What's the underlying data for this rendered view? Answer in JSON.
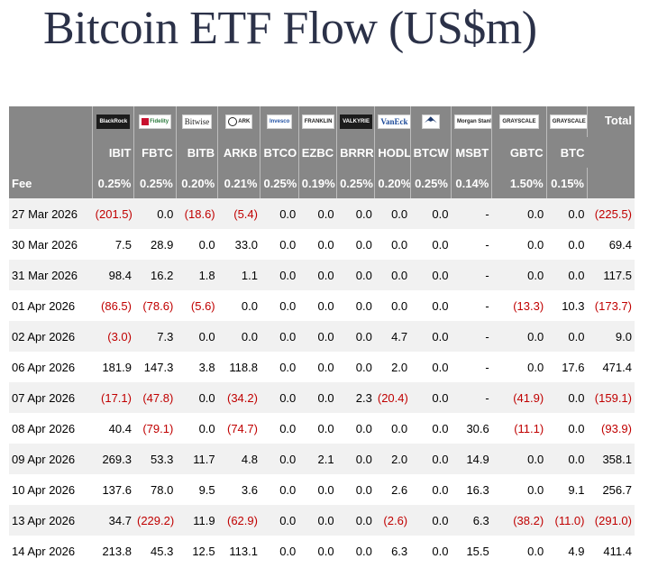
{
  "title": "Bitcoin ETF Flow (US$m)",
  "colors": {
    "header_bg": "#878787",
    "negative": "#c00000",
    "title": "#2b3148",
    "alt_row": "#f1f1f1"
  },
  "issuers": [
    {
      "text": "BlackRock",
      "icon": "blackrock-logo"
    },
    {
      "text": "Fidelity",
      "icon": "fidelity-logo"
    },
    {
      "text": "Bitwise",
      "icon": "bitwise-logo"
    },
    {
      "text": "ARK",
      "icon": "ark-invest-logo"
    },
    {
      "text": "Invesco",
      "icon": "invesco-logo"
    },
    {
      "text": "FRANKLIN",
      "icon": "franklin-templeton-logo"
    },
    {
      "text": "VALKYRIE",
      "icon": "valkyrie-logo"
    },
    {
      "text": "VanEck",
      "icon": "vaneck-logo"
    },
    {
      "text": "WisdomTree",
      "icon": "wisdomtree-logo"
    },
    {
      "text": "Morgan Stanley",
      "icon": "morgan-stanley-logo"
    },
    {
      "text": "GRAYSCALE",
      "icon": "grayscale-logo"
    },
    {
      "text": "GRAYSCALE",
      "icon": "grayscale-logo"
    }
  ],
  "total_header": "Total",
  "tickers": [
    "IBIT",
    "FBTC",
    "BITB",
    "ARKB",
    "BTCO",
    "EZBC",
    "BRRR",
    "HODL",
    "BTCW",
    "MSBT",
    "GBTC",
    "BTC"
  ],
  "fee_label": "Fee",
  "fees": [
    "0.25%",
    "0.25%",
    "0.20%",
    "0.21%",
    "0.25%",
    "0.19%",
    "0.25%",
    "0.20%",
    "0.25%",
    "0.14%",
    "1.50%",
    "0.15%"
  ],
  "rows": [
    {
      "date": "27 Mar 2026",
      "values": [
        "(201.5)",
        "0.0",
        "(18.6)",
        "(5.4)",
        "0.0",
        "0.0",
        "0.0",
        "0.0",
        "0.0",
        "-",
        "0.0",
        "0.0",
        "(225.5)"
      ]
    },
    {
      "date": "30 Mar 2026",
      "values": [
        "7.5",
        "28.9",
        "0.0",
        "33.0",
        "0.0",
        "0.0",
        "0.0",
        "0.0",
        "0.0",
        "-",
        "0.0",
        "0.0",
        "69.4"
      ]
    },
    {
      "date": "31 Mar 2026",
      "values": [
        "98.4",
        "16.2",
        "1.8",
        "1.1",
        "0.0",
        "0.0",
        "0.0",
        "0.0",
        "0.0",
        "-",
        "0.0",
        "0.0",
        "117.5"
      ]
    },
    {
      "date": "01 Apr 2026",
      "values": [
        "(86.5)",
        "(78.6)",
        "(5.6)",
        "0.0",
        "0.0",
        "0.0",
        "0.0",
        "0.0",
        "0.0",
        "-",
        "(13.3)",
        "10.3",
        "(173.7)"
      ]
    },
    {
      "date": "02 Apr 2026",
      "values": [
        "(3.0)",
        "7.3",
        "0.0",
        "0.0",
        "0.0",
        "0.0",
        "0.0",
        "4.7",
        "0.0",
        "-",
        "0.0",
        "0.0",
        "9.0"
      ]
    },
    {
      "date": "06 Apr 2026",
      "values": [
        "181.9",
        "147.3",
        "3.8",
        "118.8",
        "0.0",
        "0.0",
        "0.0",
        "2.0",
        "0.0",
        "-",
        "0.0",
        "17.6",
        "471.4"
      ]
    },
    {
      "date": "07 Apr 2026",
      "values": [
        "(17.1)",
        "(47.8)",
        "0.0",
        "(34.2)",
        "0.0",
        "0.0",
        "2.3",
        "(20.4)",
        "0.0",
        "-",
        "(41.9)",
        "0.0",
        "(159.1)"
      ]
    },
    {
      "date": "08 Apr 2026",
      "values": [
        "40.4",
        "(79.1)",
        "0.0",
        "(74.7)",
        "0.0",
        "0.0",
        "0.0",
        "0.0",
        "0.0",
        "30.6",
        "(11.1)",
        "0.0",
        "(93.9)"
      ]
    },
    {
      "date": "09 Apr 2026",
      "values": [
        "269.3",
        "53.3",
        "11.7",
        "4.8",
        "0.0",
        "2.1",
        "0.0",
        "2.0",
        "0.0",
        "14.9",
        "0.0",
        "0.0",
        "358.1"
      ]
    },
    {
      "date": "10 Apr 2026",
      "values": [
        "137.6",
        "78.0",
        "9.5",
        "3.6",
        "0.0",
        "0.0",
        "0.0",
        "2.6",
        "0.0",
        "16.3",
        "0.0",
        "9.1",
        "256.7"
      ]
    },
    {
      "date": "13 Apr 2026",
      "values": [
        "34.7",
        "(229.2)",
        "11.9",
        "(62.9)",
        "0.0",
        "0.0",
        "0.0",
        "(2.6)",
        "0.0",
        "6.3",
        "(38.2)",
        "(11.0)",
        "(291.0)"
      ]
    },
    {
      "date": "14 Apr 2026",
      "values": [
        "213.8",
        "45.3",
        "12.5",
        "113.1",
        "0.0",
        "0.0",
        "0.0",
        "6.3",
        "0.0",
        "15.5",
        "0.0",
        "4.9",
        "411.4"
      ]
    }
  ]
}
